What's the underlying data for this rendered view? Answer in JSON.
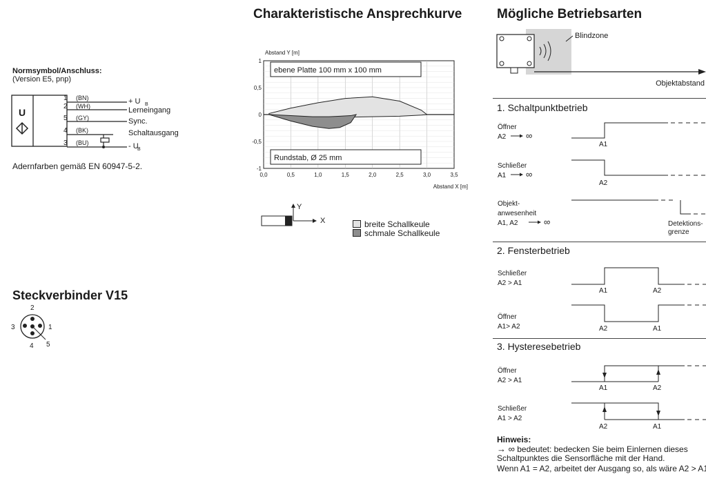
{
  "wiring": {
    "title": "Normsymbol/Anschluss:",
    "version": "(Version E5, pnp)",
    "symbol_letter": "U",
    "pins": [
      {
        "num": "1",
        "color": "(BN)",
        "label": "+ U",
        "sub": "B"
      },
      {
        "num": "2",
        "color": "(WH)",
        "label": "Lerneingang",
        "sub": ""
      },
      {
        "num": "5",
        "color": "(GY)",
        "label": "Sync.",
        "sub": ""
      },
      {
        "num": "4",
        "color": "(BK)",
        "label": "Schaltausgang",
        "sub": ""
      },
      {
        "num": "3",
        "color": "(BU)",
        "label": "- U",
        "sub": "B"
      }
    ],
    "note": "Adernfarben gemäß EN 60947-5-2."
  },
  "connector": {
    "title": "Steckverbinder V15",
    "pins": [
      "2",
      "3",
      "1",
      "5",
      "4"
    ]
  },
  "response_curve": {
    "title": "Charakteristische Ansprechkurve",
    "box_top": "ebene Platte 100 mm x 100 mm",
    "box_bottom": "Rundstab, Ø 25 mm",
    "axis_y_label": "X",
    "axis_x_label": "Y",
    "legend": [
      "breite Schallkeule",
      "schmale Schallkeule"
    ]
  },
  "chart_data": {
    "type": "area",
    "xlabel": "Abstand X [m]",
    "ylabel": "Abstand Y [m]",
    "xlim": [
      0,
      3.5
    ],
    "ylim": [
      -1,
      1
    ],
    "x_ticks": [
      "0,0",
      "0,5",
      "1,0",
      "1,5",
      "2,0",
      "2,5",
      "3,0",
      "3,5"
    ],
    "y_ticks": [
      "1",
      "0,5",
      "0",
      "-0,5",
      "-1"
    ],
    "grid": true,
    "series": [
      {
        "name": "breite Schallkeule",
        "x": [
          0.1,
          0.5,
          1.0,
          1.5,
          2.0,
          2.5,
          2.9,
          3.0
        ],
        "upper": [
          0.02,
          0.12,
          0.22,
          0.3,
          0.33,
          0.25,
          0.08,
          0.0
        ],
        "lower": [
          0.0,
          -0.04,
          -0.06,
          -0.05,
          -0.04,
          -0.03,
          -0.01,
          0.0
        ]
      },
      {
        "name": "schmale Schallkeule",
        "x": [
          0.1,
          0.5,
          0.9,
          1.2,
          1.4,
          1.6,
          1.7
        ],
        "upper": [
          0.0,
          -0.02,
          -0.04,
          -0.04,
          -0.03,
          -0.02,
          0.0
        ],
        "lower": [
          0.0,
          -0.12,
          -0.22,
          -0.26,
          -0.24,
          -0.15,
          0.0
        ]
      }
    ]
  },
  "modes": {
    "title": "Mögliche Betriebsarten",
    "blindzone": "Blindzone",
    "objektabstand": "Objektabstand",
    "section1": "1. Schaltpunktbetrieb",
    "s1_oeffner": "Öffner",
    "s1_oeffner_sub": "A2",
    "s1_schliesser": "Schließer",
    "s1_schliesser_sub": "A1",
    "s1_objekt1": "Objekt-",
    "s1_objekt2": "anwesenheit",
    "s1_objekt3": "A1, A2",
    "a1": "A1",
    "a2": "A2",
    "detektion1": "Detektions-",
    "detektion2": "grenze",
    "section2": "2. Fensterbetrieb",
    "s2_schliesser": "Schließer",
    "s2_schliesser_sub": "A2 > A1",
    "s2_oeffner": "Öffner",
    "s2_oeffner_sub": "A1> A2",
    "section3": "3. Hysteresebetrieb",
    "s3_oeffner": "Öffner",
    "s3_oeffner_sub": "A2 > A1",
    "s3_schliesser": "Schließer",
    "s3_schliesser_sub": "A1 > A2",
    "hinweis_title": "Hinweis:",
    "hinweis_1": "bedeutet: bedecken Sie beim Einlernen dieses",
    "hinweis_2": "Schaltpunktes die Sensorfläche mit der Hand.",
    "hinweis_3": "Wenn A1 = A2, arbeitet der Ausgang so, als wäre A2 > A1"
  }
}
